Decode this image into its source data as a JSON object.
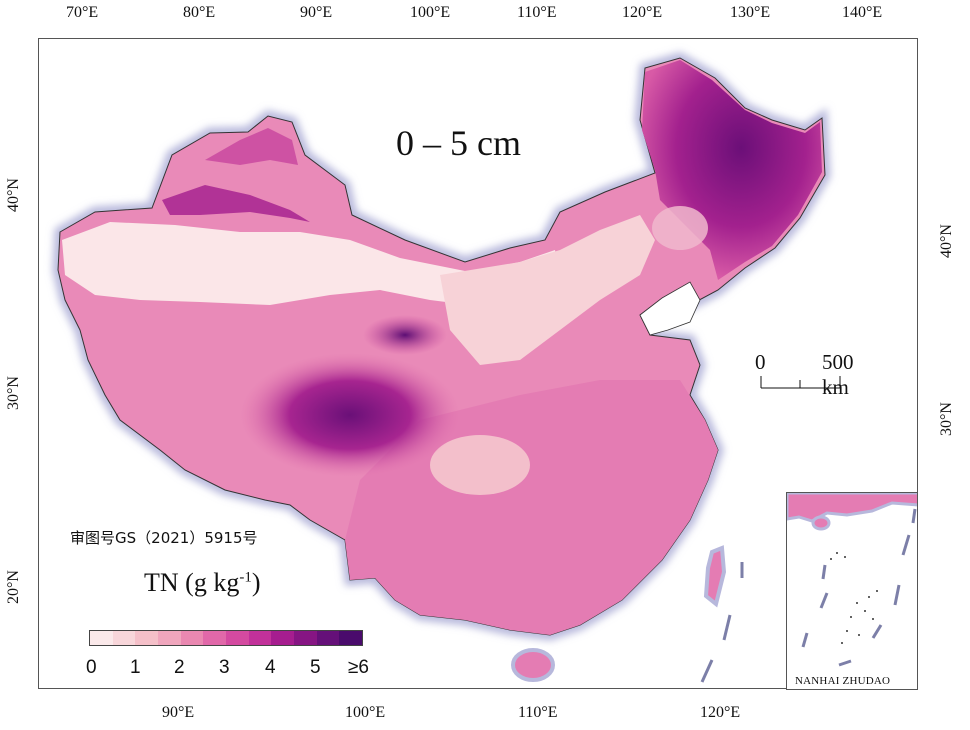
{
  "map": {
    "depth_label": "0 – 5 cm",
    "approval_number": "审图号GS（2021）5915号",
    "legend_title": "TN",
    "legend_unit_text": "(g kg",
    "legend_unit_sup": "-1",
    "legend_unit_close": ")",
    "legend_ticks": [
      "0",
      "1",
      "2",
      "3",
      "4",
      "5",
      "≥6"
    ],
    "legend_colors": [
      "#fbe9ea",
      "#f8d6da",
      "#f5c0c9",
      "#f0a6bd",
      "#ea88b1",
      "#e168a9",
      "#d44aa0",
      "#c2319a",
      "#a61d8f",
      "#861583",
      "#651079",
      "#4a0b6c"
    ],
    "scale_labels": [
      "0",
      "500 km"
    ],
    "inset_label": "NANHAI ZHUDAO",
    "top_ticks": [
      "70°E",
      "80°E",
      "90°E",
      "100°E",
      "110°E",
      "120°E",
      "130°E",
      "140°E"
    ],
    "bottom_ticks": [
      "90°E",
      "100°E",
      "110°E",
      "120°E"
    ],
    "left_ticks": [
      "40°N",
      "30°N",
      "20°N"
    ],
    "right_ticks": [
      "40°N",
      "30°N"
    ]
  }
}
